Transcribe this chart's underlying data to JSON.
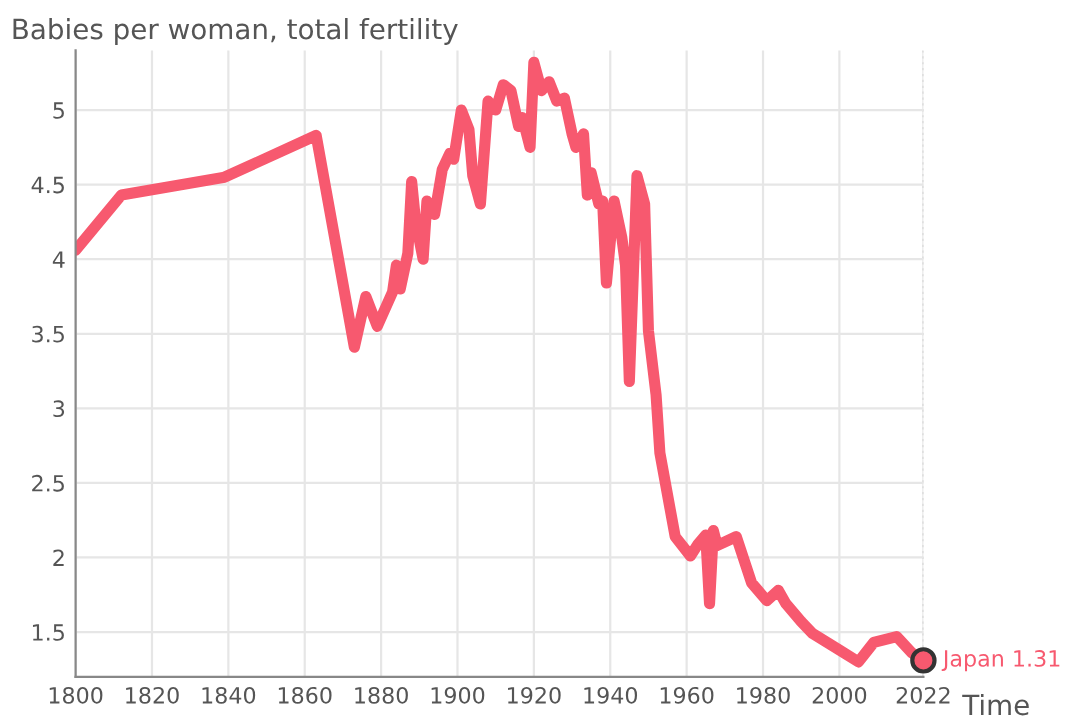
{
  "chart_data": {
    "type": "line",
    "title": "Babies per woman, total fertility",
    "xlabel": "Time",
    "x": [
      1800,
      1812,
      1839,
      1863,
      1873,
      1876,
      1879,
      1883,
      1884,
      1885,
      1887,
      1888,
      1889,
      1891,
      1892,
      1894,
      1896,
      1898,
      1899,
      1901,
      1903,
      1904,
      1906,
      1908,
      1910,
      1912,
      1914,
      1916,
      1917,
      1919,
      1920,
      1922,
      1924,
      1926,
      1928,
      1930,
      1931,
      1933,
      1934,
      1935,
      1937,
      1938,
      1939,
      1941,
      1943,
      1944,
      1945,
      1947,
      1949,
      1950,
      1952,
      1953,
      1957,
      1961,
      1963,
      1965,
      1966,
      1967,
      1968,
      1973,
      1977,
      1981,
      1984,
      1986,
      1990,
      1993,
      2000,
      2005,
      2009,
      2015,
      2019,
      2022
    ],
    "series": [
      {
        "color": "#f7596f",
        "values": [
          4.06,
          4.43,
          4.55,
          4.83,
          3.41,
          3.75,
          3.55,
          3.78,
          3.96,
          3.8,
          4.04,
          4.52,
          4.26,
          4.0,
          4.39,
          4.3,
          4.6,
          4.71,
          4.67,
          5.0,
          4.87,
          4.56,
          4.37,
          5.06,
          5.0,
          5.17,
          5.13,
          4.89,
          4.95,
          4.75,
          5.32,
          5.13,
          5.19,
          5.06,
          5.08,
          4.84,
          4.75,
          4.84,
          4.43,
          4.58,
          4.37,
          4.39,
          3.84,
          4.39,
          4.15,
          3.96,
          3.18,
          4.56,
          4.37,
          3.52,
          3.09,
          2.7,
          2.14,
          2.01,
          2.09,
          2.15,
          1.69,
          2.18,
          2.08,
          2.14,
          1.83,
          1.71,
          1.78,
          1.69,
          1.57,
          1.49,
          1.38,
          1.3,
          1.43,
          1.47,
          1.36,
          1.31
        ]
      }
    ],
    "annotations": [
      {
        "text": "Japan 1.31",
        "x": 2022,
        "y": 1.31
      }
    ],
    "ref_lines": [
      {
        "axis": "x",
        "value": 2022,
        "color": "#bbbbbb",
        "line_style": "dotted"
      }
    ],
    "xlim": [
      1800,
      2022
    ],
    "xticks": [
      1800,
      1820,
      1840,
      1860,
      1880,
      1900,
      1920,
      1940,
      1960,
      1980,
      2000,
      2022
    ],
    "ylim": [
      1.2,
      5.4
    ],
    "yticks": [
      1.5,
      2,
      2.5,
      3,
      3.5,
      4,
      4.5,
      5
    ],
    "grid": true,
    "legend": false,
    "line_style": "solid"
  }
}
